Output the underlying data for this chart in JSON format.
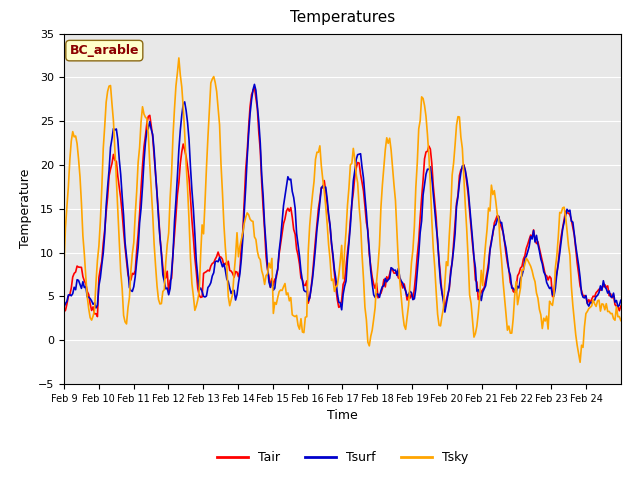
{
  "title": "Temperatures",
  "xlabel": "Time",
  "ylabel": "Temperature",
  "ylim": [
    -5,
    35
  ],
  "annotation_text": "BC_arable",
  "annotation_color": "#8B0000",
  "annotation_bg": "#FFFFCC",
  "color_tair": "#FF0000",
  "color_tsurf": "#0000CC",
  "color_tsky": "#FFA500",
  "legend_labels": [
    "Tair",
    "Tsurf",
    "Tsky"
  ],
  "xtick_labels": [
    "Feb 9",
    "Feb 10",
    "Feb 11",
    "Feb 12",
    "Feb 13",
    "Feb 14",
    "Feb 15",
    "Feb 16",
    "Feb 17",
    "Feb 18",
    "Feb 19",
    "Feb 20",
    "Feb 21",
    "Feb 22",
    "Feb 23",
    "Feb 24"
  ],
  "background_color": "#E8E8E8",
  "fig_bg": "#FFFFFF",
  "linewidth": 1.2,
  "n_days": 16,
  "n_per_day": 24,
  "tair_peaks": [
    8.5,
    21,
    25.5,
    22,
    9.5,
    29,
    15,
    17.5,
    20,
    8,
    22,
    20,
    14,
    12,
    15,
    6
  ],
  "tair_troughs": [
    3,
    7,
    7,
    5,
    7.5,
    6.5,
    6,
    4,
    6,
    5,
    4.5,
    5,
    5.5,
    7,
    5,
    4
  ],
  "tsurf_peaks": [
    6.5,
    24,
    25,
    27,
    9,
    29,
    18.5,
    17.5,
    21.5,
    8,
    20,
    20,
    14,
    12,
    15,
    6
  ],
  "tsurf_troughs": [
    4,
    6,
    6,
    5,
    5,
    6.5,
    5.5,
    4,
    5,
    5,
    4,
    5,
    5.5,
    6,
    5,
    4
  ],
  "tsky_peaks": [
    24,
    29,
    26,
    31,
    30.5,
    14,
    6,
    21.5,
    21,
    23.5,
    27.5,
    25,
    17.5,
    9,
    15,
    4
  ],
  "tsky_troughs": [
    2,
    2,
    4,
    3.5,
    4,
    7,
    1.5,
    5.5,
    0,
    1.5,
    1.5,
    0.5,
    1,
    2,
    -2,
    3
  ]
}
